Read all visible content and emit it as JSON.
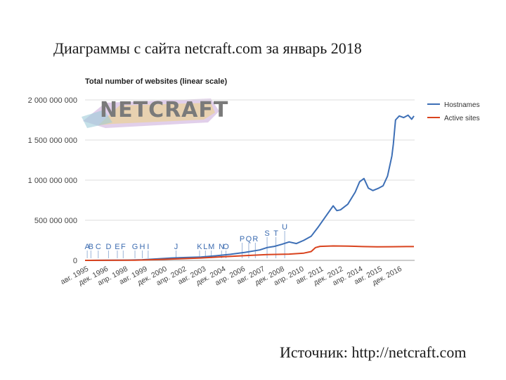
{
  "slide": {
    "title": "Диаграммы с сайта netcraft.com за январь 2018",
    "source": "Источник: http://netcraft.com"
  },
  "logo": {
    "text": "NETCRAFT"
  },
  "chart_data": {
    "type": "line",
    "title": "Total number of websites (linear scale)",
    "xlabel": "",
    "ylabel": "",
    "ylim": [
      0,
      2000000000
    ],
    "yticks": [
      0,
      500000000,
      1000000000,
      1500000000,
      2000000000
    ],
    "ytick_labels": [
      "0",
      "500 000 000",
      "1 000 000 000",
      "1 500 000 000",
      "2 000 000 000"
    ],
    "xlim": [
      1995.6,
      2018.05
    ],
    "xticks": [
      {
        "label": "авг. 1995",
        "x": 1995.58
      },
      {
        "label": "дек. 1996",
        "x": 1996.92
      },
      {
        "label": "апр. 1998",
        "x": 1998.25
      },
      {
        "label": "авг. 1999",
        "x": 1999.58
      },
      {
        "label": "дек. 2000",
        "x": 2000.92
      },
      {
        "label": "апр. 2002",
        "x": 2002.25
      },
      {
        "label": "авг. 2003",
        "x": 2003.58
      },
      {
        "label": "дек. 2004",
        "x": 2004.92
      },
      {
        "label": "апр. 2006",
        "x": 2006.25
      },
      {
        "label": "авг. 2007",
        "x": 2007.58
      },
      {
        "label": "дек. 2008",
        "x": 2008.92
      },
      {
        "label": "апр. 2010",
        "x": 2010.25
      },
      {
        "label": "авг. 2011",
        "x": 2011.58
      },
      {
        "label": "дек. 2012",
        "x": 2012.92
      },
      {
        "label": "апр. 2014",
        "x": 2014.25
      },
      {
        "label": "авг. 2015",
        "x": 2015.58
      },
      {
        "label": "дек. 2016",
        "x": 2016.92
      }
    ],
    "legend": "top-right",
    "grid": true,
    "series": [
      {
        "name": "Hostnames",
        "color": "#3d6fb6",
        "points": [
          [
            1995.6,
            0
          ],
          [
            1996.5,
            500000
          ],
          [
            1997.5,
            1500000
          ],
          [
            1998.5,
            3500000
          ],
          [
            1999.5,
            8000000
          ],
          [
            2000.5,
            18000000
          ],
          [
            2001.5,
            30000000
          ],
          [
            2002.5,
            36000000
          ],
          [
            2003.5,
            42000000
          ],
          [
            2004.5,
            57000000
          ],
          [
            2005.5,
            75000000
          ],
          [
            2006.5,
            100000000
          ],
          [
            2007.5,
            130000000
          ],
          [
            2008.0,
            160000000
          ],
          [
            2008.5,
            175000000
          ],
          [
            2009.0,
            200000000
          ],
          [
            2009.5,
            230000000
          ],
          [
            2010.0,
            210000000
          ],
          [
            2010.5,
            250000000
          ],
          [
            2011.0,
            300000000
          ],
          [
            2011.5,
            420000000
          ],
          [
            2012.0,
            550000000
          ],
          [
            2012.5,
            680000000
          ],
          [
            2012.75,
            620000000
          ],
          [
            2013.0,
            630000000
          ],
          [
            2013.5,
            700000000
          ],
          [
            2014.0,
            850000000
          ],
          [
            2014.3,
            980000000
          ],
          [
            2014.6,
            1020000000
          ],
          [
            2014.9,
            900000000
          ],
          [
            2015.2,
            870000000
          ],
          [
            2015.6,
            900000000
          ],
          [
            2015.9,
            930000000
          ],
          [
            2016.2,
            1050000000
          ],
          [
            2016.5,
            1300000000
          ],
          [
            2016.6,
            1450000000
          ],
          [
            2016.75,
            1750000000
          ],
          [
            2017.0,
            1800000000
          ],
          [
            2017.3,
            1780000000
          ],
          [
            2017.6,
            1810000000
          ],
          [
            2017.85,
            1760000000
          ],
          [
            2018.0,
            1800000000
          ]
        ]
      },
      {
        "name": "Active sites",
        "color": "#d9431e",
        "points": [
          [
            1995.6,
            0
          ],
          [
            1997.0,
            1000000
          ],
          [
            1999.0,
            3000000
          ],
          [
            2000.5,
            10000000
          ],
          [
            2002.0,
            20000000
          ],
          [
            2003.5,
            30000000
          ],
          [
            2005.0,
            45000000
          ],
          [
            2006.5,
            60000000
          ],
          [
            2008.0,
            72000000
          ],
          [
            2009.5,
            78000000
          ],
          [
            2010.5,
            90000000
          ],
          [
            2011.0,
            110000000
          ],
          [
            2011.3,
            160000000
          ],
          [
            2011.6,
            175000000
          ],
          [
            2012.5,
            180000000
          ],
          [
            2013.5,
            178000000
          ],
          [
            2014.5,
            172000000
          ],
          [
            2015.5,
            168000000
          ],
          [
            2016.5,
            170000000
          ],
          [
            2017.5,
            172000000
          ],
          [
            2018.0,
            172000000
          ]
        ]
      }
    ],
    "annotations": [
      {
        "label": "A",
        "x": 1995.75,
        "level": 0
      },
      {
        "label": "B",
        "x": 1996.0,
        "level": 0
      },
      {
        "label": "C",
        "x": 1996.5,
        "level": 0
      },
      {
        "label": "D",
        "x": 1997.2,
        "level": 0
      },
      {
        "label": "E",
        "x": 1997.8,
        "level": 0
      },
      {
        "label": "F",
        "x": 1998.2,
        "level": 0
      },
      {
        "label": "G",
        "x": 1999.0,
        "level": 0
      },
      {
        "label": "H",
        "x": 1999.5,
        "level": 0
      },
      {
        "label": "I",
        "x": 1999.9,
        "level": 0
      },
      {
        "label": "J",
        "x": 2001.8,
        "level": 0
      },
      {
        "label": "K",
        "x": 2003.4,
        "level": 0
      },
      {
        "label": "L",
        "x": 2003.8,
        "level": 0
      },
      {
        "label": "M",
        "x": 2004.2,
        "level": 0
      },
      {
        "label": "N",
        "x": 2004.9,
        "level": 0
      },
      {
        "label": "O",
        "x": 2005.2,
        "level": 0
      },
      {
        "label": "P",
        "x": 2006.3,
        "level": 1
      },
      {
        "label": "Q",
        "x": 2006.75,
        "level": 1
      },
      {
        "label": "R",
        "x": 2007.2,
        "level": 1
      },
      {
        "label": "S",
        "x": 2008.0,
        "level": 2
      },
      {
        "label": "T",
        "x": 2008.6,
        "level": 2
      },
      {
        "label": "U",
        "x": 2009.2,
        "level": 3
      }
    ]
  }
}
